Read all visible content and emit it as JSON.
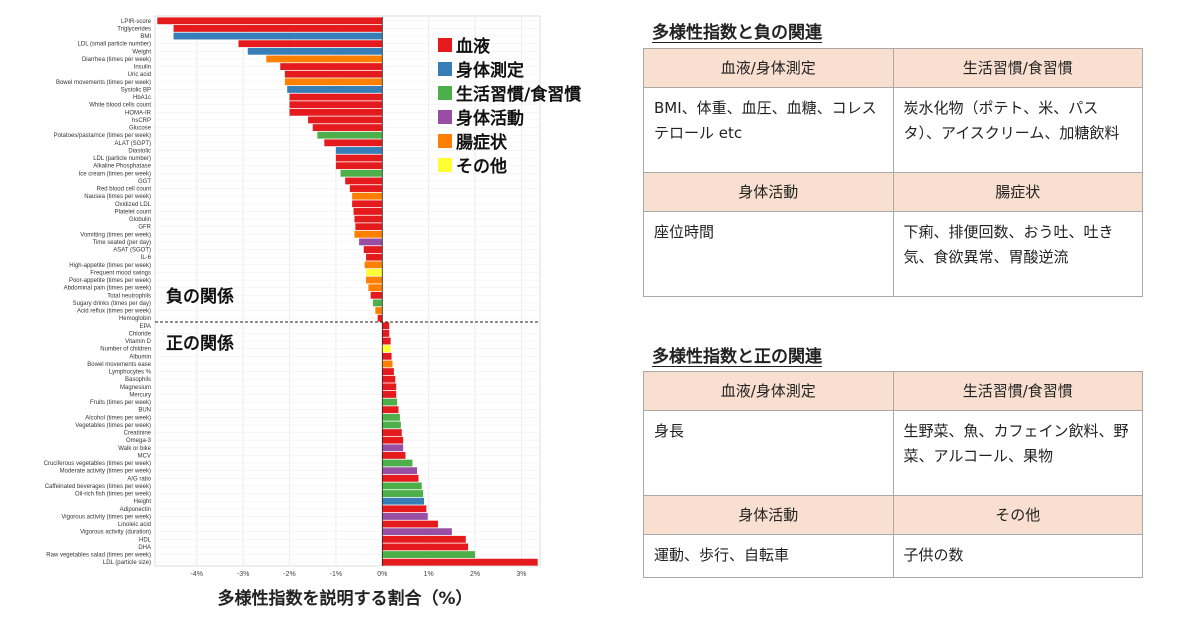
{
  "chart_data": {
    "type": "bar",
    "orientation": "horizontal",
    "xlabel": "多様性指数を説明する割合（%）",
    "xlim": [
      -4.9,
      3.4
    ],
    "xticks": [
      "-4%",
      "-3%",
      "-2%",
      "-1%",
      "0%",
      "1%",
      "2%",
      "3%"
    ],
    "xtick_values": [
      -4,
      -3,
      -2,
      -1,
      0,
      1,
      2,
      3
    ],
    "grid": true,
    "legend_position": "top-right",
    "legend": [
      {
        "key": "blood",
        "label": "血液",
        "color": "#e41a1c"
      },
      {
        "key": "body",
        "label": "身体測定",
        "color": "#377eb8"
      },
      {
        "key": "life",
        "label": "生活習慣/食習慣",
        "color": "#4daf4a"
      },
      {
        "key": "act",
        "label": "身体活動",
        "color": "#984ea3"
      },
      {
        "key": "gut",
        "label": "腸症状",
        "color": "#ff7f00"
      },
      {
        "key": "other",
        "label": "その他",
        "color": "#ffff33"
      }
    ],
    "region_labels": {
      "negative": "負の関係",
      "positive": "正の関係"
    },
    "bars": [
      {
        "label": "LPIR-score",
        "value": -4.85,
        "cat": "blood"
      },
      {
        "label": "Triglycerides",
        "value": -4.5,
        "cat": "blood"
      },
      {
        "label": "BMI",
        "value": -4.5,
        "cat": "body"
      },
      {
        "label": "LDL (small particle number)",
        "value": -3.1,
        "cat": "blood"
      },
      {
        "label": "Weight",
        "value": -2.9,
        "cat": "body"
      },
      {
        "label": "Diarrhea (times per week)",
        "value": -2.5,
        "cat": "gut"
      },
      {
        "label": "Insulin",
        "value": -2.2,
        "cat": "blood"
      },
      {
        "label": "Uric acid",
        "value": -2.1,
        "cat": "blood"
      },
      {
        "label": "Bowel movements (times per week)",
        "value": -2.1,
        "cat": "gut"
      },
      {
        "label": "Systolic BP",
        "value": -2.05,
        "cat": "body"
      },
      {
        "label": "HbA1c",
        "value": -2.0,
        "cat": "blood"
      },
      {
        "label": "White blood cells count",
        "value": -2.0,
        "cat": "blood"
      },
      {
        "label": "HOMA-IR",
        "value": -2.0,
        "cat": "blood"
      },
      {
        "label": "hsCRP",
        "value": -1.6,
        "cat": "blood"
      },
      {
        "label": "Glucose",
        "value": -1.5,
        "cat": "blood"
      },
      {
        "label": "Potatoes/pasta/rice (times per week)",
        "value": -1.4,
        "cat": "life"
      },
      {
        "label": "ALAT (SGPT)",
        "value": -1.25,
        "cat": "blood"
      },
      {
        "label": "Diastolic",
        "value": -1.0,
        "cat": "body"
      },
      {
        "label": "LDL (particle number)",
        "value": -1.0,
        "cat": "blood"
      },
      {
        "label": "Alkaline Phosphatase",
        "value": -1.0,
        "cat": "blood"
      },
      {
        "label": "Ice cream (times per week)",
        "value": -0.9,
        "cat": "life"
      },
      {
        "label": "GGT",
        "value": -0.8,
        "cat": "blood"
      },
      {
        "label": "Red blood cell count",
        "value": -0.7,
        "cat": "blood"
      },
      {
        "label": "Nausea (times per week)",
        "value": -0.65,
        "cat": "gut"
      },
      {
        "label": "Oxidized LDL",
        "value": -0.65,
        "cat": "blood"
      },
      {
        "label": "Platelet count",
        "value": -0.62,
        "cat": "blood"
      },
      {
        "label": "Globulin",
        "value": -0.6,
        "cat": "blood"
      },
      {
        "label": "GFR",
        "value": -0.58,
        "cat": "blood"
      },
      {
        "label": "Vomitting (times per week)",
        "value": -0.6,
        "cat": "gut"
      },
      {
        "label": "Time seated (per day)",
        "value": -0.5,
        "cat": "act"
      },
      {
        "label": "ASAT (SGOT)",
        "value": -0.4,
        "cat": "blood"
      },
      {
        "label": "IL-6",
        "value": -0.35,
        "cat": "blood"
      },
      {
        "label": "High-appetite (times per week)",
        "value": -0.38,
        "cat": "gut"
      },
      {
        "label": "Frequent mood swings",
        "value": -0.35,
        "cat": "other"
      },
      {
        "label": "Poor-appetite (times per week)",
        "value": -0.35,
        "cat": "gut"
      },
      {
        "label": "Abdominal pain (times per week)",
        "value": -0.3,
        "cat": "gut"
      },
      {
        "label": "Total neutrophils",
        "value": -0.25,
        "cat": "blood"
      },
      {
        "label": "Sugary drinks (times per day)",
        "value": -0.2,
        "cat": "life"
      },
      {
        "label": "Acid reflux (times per week)",
        "value": -0.15,
        "cat": "gut"
      },
      {
        "label": "Hemoglobin",
        "value": -0.1,
        "cat": "blood"
      },
      {
        "label": "EPA",
        "value": 0.15,
        "cat": "blood"
      },
      {
        "label": "Chloride",
        "value": 0.15,
        "cat": "blood"
      },
      {
        "label": "Vitamin D",
        "value": 0.18,
        "cat": "blood"
      },
      {
        "label": "Number of children",
        "value": 0.18,
        "cat": "other"
      },
      {
        "label": "Albumin",
        "value": 0.2,
        "cat": "blood"
      },
      {
        "label": "Bowel movements ease",
        "value": 0.22,
        "cat": "gut"
      },
      {
        "label": "Lymphocytes %",
        "value": 0.25,
        "cat": "blood"
      },
      {
        "label": "Basophils",
        "value": 0.28,
        "cat": "blood"
      },
      {
        "label": "Magnesium",
        "value": 0.3,
        "cat": "blood"
      },
      {
        "label": "Mercury",
        "value": 0.3,
        "cat": "blood"
      },
      {
        "label": "Fruits (times per week)",
        "value": 0.32,
        "cat": "life"
      },
      {
        "label": "BUN",
        "value": 0.35,
        "cat": "blood"
      },
      {
        "label": "Alcohol (times per week)",
        "value": 0.38,
        "cat": "life"
      },
      {
        "label": "Vegetables (times per week)",
        "value": 0.4,
        "cat": "life"
      },
      {
        "label": "Creatinine",
        "value": 0.42,
        "cat": "blood"
      },
      {
        "label": "Omega-3",
        "value": 0.45,
        "cat": "blood"
      },
      {
        "label": "Walk or bike",
        "value": 0.45,
        "cat": "act"
      },
      {
        "label": "MCV",
        "value": 0.5,
        "cat": "blood"
      },
      {
        "label": "Cruciferous vegetables (times per week)",
        "value": 0.65,
        "cat": "life"
      },
      {
        "label": "Moderate activity (times per week)",
        "value": 0.75,
        "cat": "act"
      },
      {
        "label": "A/G ratio",
        "value": 0.78,
        "cat": "blood"
      },
      {
        "label": "Caffeinated beverages (times per week)",
        "value": 0.85,
        "cat": "life"
      },
      {
        "label": "Oil-rich fish (times per week)",
        "value": 0.88,
        "cat": "life"
      },
      {
        "label": "Height",
        "value": 0.9,
        "cat": "body"
      },
      {
        "label": "Adiponectin",
        "value": 0.95,
        "cat": "blood"
      },
      {
        "label": "Vigorous activity (times per week)",
        "value": 0.98,
        "cat": "act"
      },
      {
        "label": "Linoleic acid",
        "value": 1.2,
        "cat": "blood"
      },
      {
        "label": "Vigorous activity (duration)",
        "value": 1.5,
        "cat": "act"
      },
      {
        "label": "HDL",
        "value": 1.8,
        "cat": "blood"
      },
      {
        "label": "DHA",
        "value": 1.85,
        "cat": "blood"
      },
      {
        "label": "Raw vegetables salad (times per week)",
        "value": 2.0,
        "cat": "life"
      },
      {
        "label": "LDL (particle size)",
        "value": 3.35,
        "cat": "blood"
      }
    ]
  },
  "tables": [
    {
      "title": "多様性指数と負の関連",
      "rows": [
        {
          "h1": "血液/身体測定",
          "h2": "生活習慣/食習慣",
          "c1": "BMI、体重、血圧、血糖、コレステロール etc",
          "c2": "炭水化物（ポテト、米、パスタ）、アイスクリーム、加糖飲料"
        },
        {
          "h1": "身体活動",
          "h2": "腸症状",
          "c1": "座位時間",
          "c2": "下痢、排便回数、おう吐、吐き気、食欲異常、胃酸逆流"
        }
      ]
    },
    {
      "title": "多様性指数と正の関連",
      "rows": [
        {
          "h1": "血液/身体測定",
          "h2": "生活習慣/食習慣",
          "c1": "身長",
          "c2": "生野菜、魚、カフェイン飲料、野菜、アルコール、果物"
        },
        {
          "h1": "身体活動",
          "h2": "その他",
          "c1": "運動、歩行、自転車",
          "c2": "子供の数"
        }
      ]
    }
  ]
}
